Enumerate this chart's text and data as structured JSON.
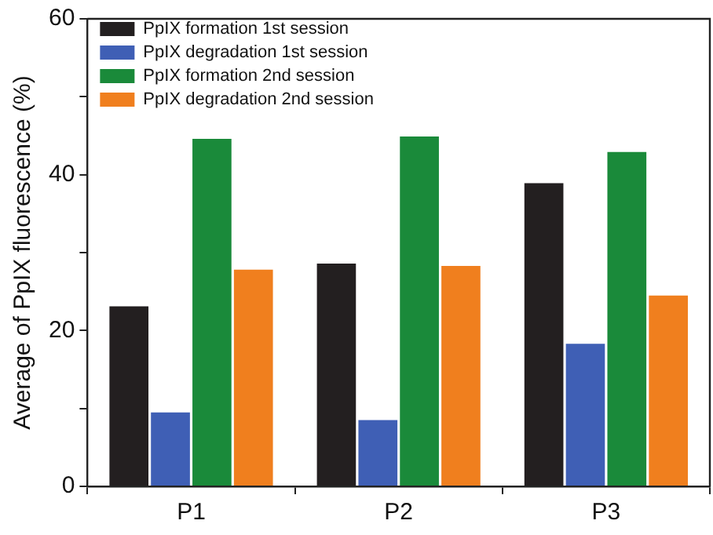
{
  "chart_data": {
    "type": "bar",
    "ylabel": "Average of PpIX fluorescence (%)",
    "categories": [
      "P1",
      "P2",
      "P3"
    ],
    "series": [
      {
        "name": "PpIX formation 1st session",
        "color": "#231f20",
        "values": [
          23.1,
          28.6,
          38.9
        ]
      },
      {
        "name": "PpIX degradation 1st session",
        "color": "#3f5fb5",
        "values": [
          9.5,
          8.5,
          18.3
        ]
      },
      {
        "name": "PpIX formation 2nd session",
        "color": "#1a8a3a",
        "values": [
          44.6,
          44.9,
          42.9
        ]
      },
      {
        "name": "PpIX degradation 2nd session",
        "color": "#f07f1e",
        "values": [
          27.8,
          28.3,
          24.5
        ]
      }
    ],
    "ylim": [
      0,
      60
    ],
    "yticks": [
      0,
      {
        "value": 10,
        "label": null
      },
      20,
      {
        "value": 30,
        "label": null
      },
      40,
      {
        "value": 50,
        "label": null
      },
      60
    ],
    "grid": false,
    "legend": "top left"
  }
}
